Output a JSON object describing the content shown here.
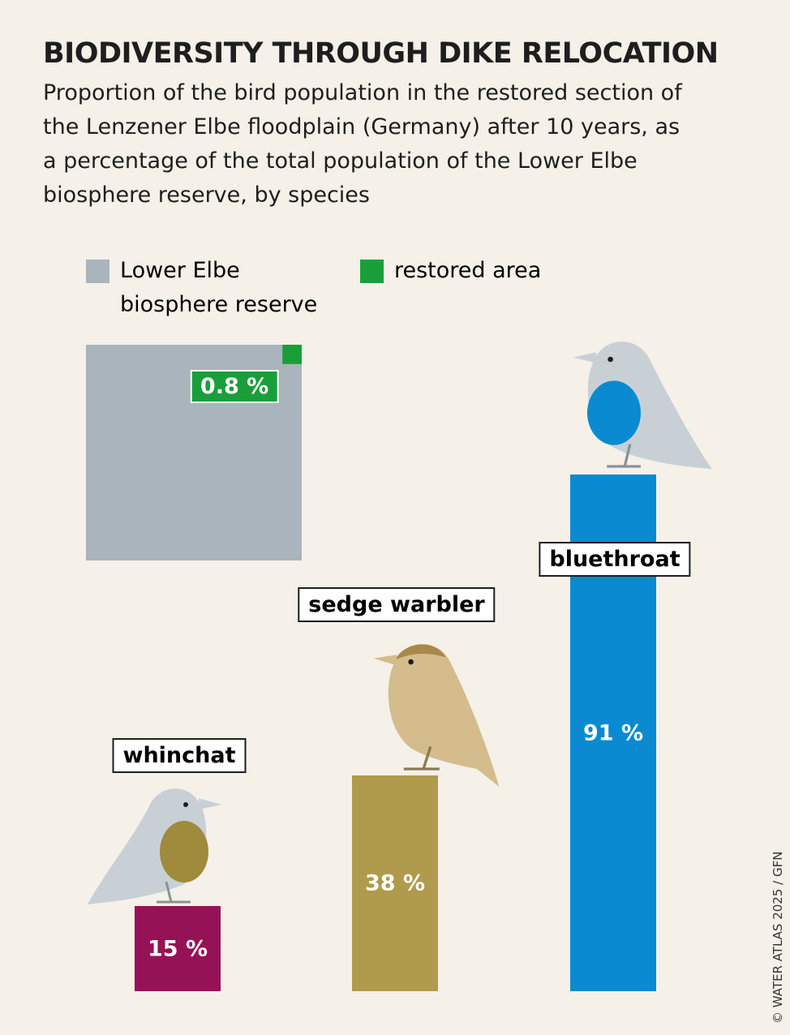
{
  "chart_data": {
    "type": "bar",
    "title": "BIODIVERSITY THROUGH DIKE RELOCATION",
    "subtitle": "Proportion of the bird population in the restored section of the Lenzener Elbe floodplain (Germany) after 10 years, as a percentage of the total population of the Lower Elbe biosphere reserve, by species",
    "area_comparison": {
      "series": [
        {
          "name": "Lower Elbe biosphere reserve",
          "color": "#a9b4bc"
        },
        {
          "name": "restored area",
          "color": "#1a9e3a",
          "values": [
            0.8
          ],
          "value_labels": [
            "0.8 %"
          ]
        }
      ]
    },
    "categories": [
      "whinchat",
      "sedge warbler",
      "bluethroat"
    ],
    "values": [
      15,
      38,
      91
    ],
    "value_labels": [
      "15 %",
      "38 %",
      "91 %"
    ],
    "colors": [
      "#961257",
      "#b09a4c",
      "#0a8ad0"
    ],
    "source": "© WATER ATLAS 2025 / GFN"
  }
}
